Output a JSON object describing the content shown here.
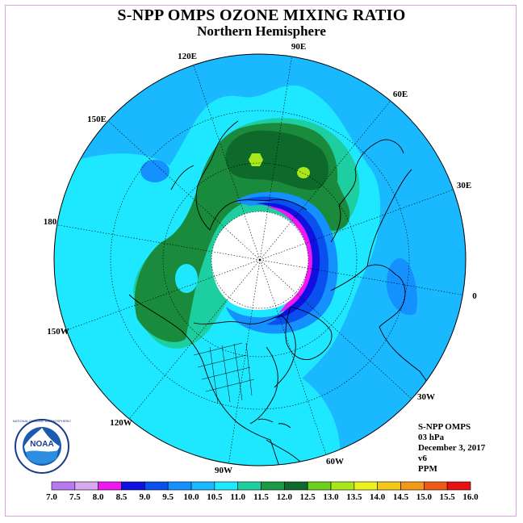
{
  "title": "S-NPP OMPS OZONE MIXING RATIO",
  "subtitle": "Northern Hemisphere",
  "longitude_labels": [
    {
      "id": "lon-90e",
      "text": "90E"
    },
    {
      "id": "lon-60e",
      "text": "60E"
    },
    {
      "id": "lon-30e",
      "text": "30E"
    },
    {
      "id": "lon-0",
      "text": "0"
    },
    {
      "id": "lon-30w",
      "text": "30W"
    },
    {
      "id": "lon-60w",
      "text": "60W"
    },
    {
      "id": "lon-90w",
      "text": "90W"
    },
    {
      "id": "lon-120w",
      "text": "120W"
    },
    {
      "id": "lon-150w",
      "text": "150W"
    },
    {
      "id": "lon-180",
      "text": "180"
    },
    {
      "id": "lon-150e",
      "text": "150E"
    },
    {
      "id": "lon-120e",
      "text": "120E"
    }
  ],
  "info": {
    "instrument": "S-NPP OMPS",
    "level": "03 hPa",
    "date": "December 3, 2017",
    "version": "v6",
    "units": "PPM"
  },
  "logo": {
    "text": "NOAA",
    "ring_text": "NATIONAL OCEANIC AND ATMOSPHERIC ADMINISTRATION · U.S. DEPARTMENT OF COMMERCE"
  },
  "colorbar": {
    "labels": [
      "7.0",
      "7.5",
      "8.0",
      "8.5",
      "9.0",
      "9.5",
      "10.0",
      "10.5",
      "11.0",
      "11.5",
      "12.0",
      "12.5",
      "13.0",
      "13.5",
      "14.0",
      "14.5",
      "15.0",
      "15.5",
      "16.0"
    ],
    "colors": [
      "#b878f0",
      "#d8a8f0",
      "#f018f0",
      "#1010e0",
      "#0a50ee",
      "#1590ff",
      "#1ab8ff",
      "#1ee8ff",
      "#1dcfa0",
      "#1a9a44",
      "#0e6a2a",
      "#6cd01a",
      "#a8e81a",
      "#ecf21c",
      "#f2c81a",
      "#f29a18",
      "#ec5a14",
      "#e81010",
      "#7a4a2a"
    ]
  },
  "colors": {
    "ocean_background": "#18c8f8",
    "no_data": "#ffffff",
    "coast": "#000000"
  }
}
